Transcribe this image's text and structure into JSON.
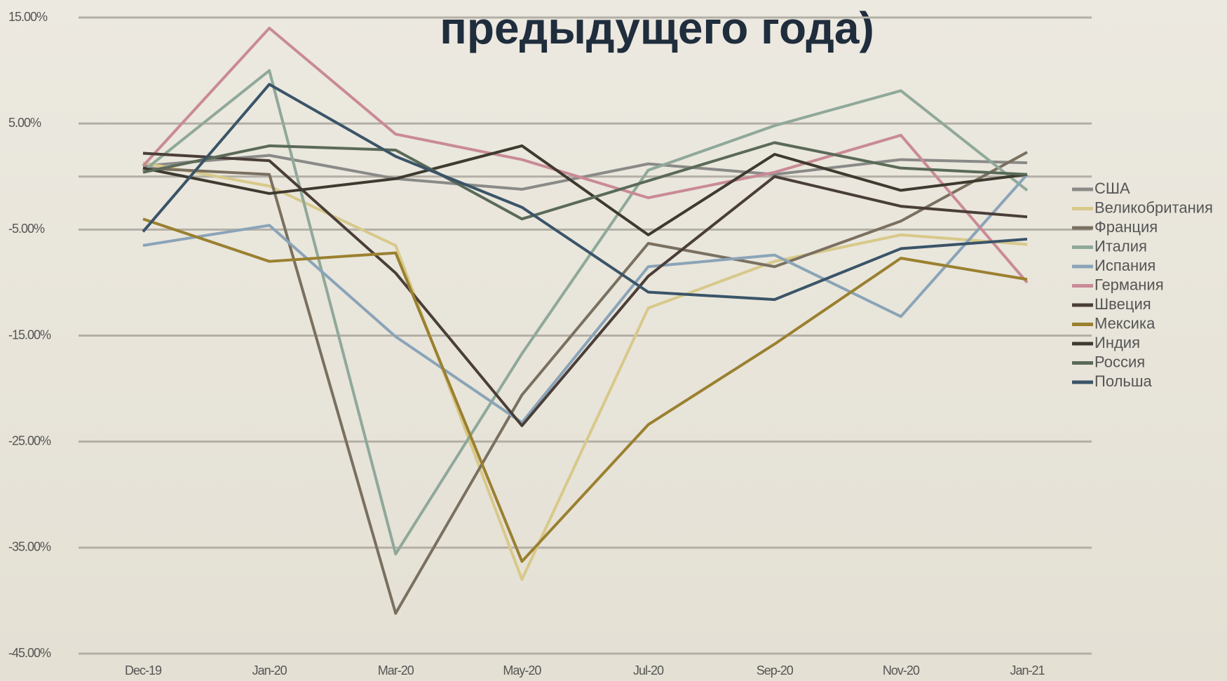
{
  "chart_data": {
    "type": "line",
    "title": "предыдущего года)",
    "categories": [
      "Dec-19",
      "Jan-20",
      "Mar-20",
      "May-20",
      "Jul-20",
      "Sep-20",
      "Nov-20",
      "Jan-21"
    ],
    "ylim": [
      -45,
      15
    ],
    "yticks": [
      {
        "value": 15,
        "label": "15.00%"
      },
      {
        "value": 5,
        "label": "5.00%"
      },
      {
        "value": -5,
        "label": "-5.00%"
      },
      {
        "value": -15,
        "label": "-15.00%"
      },
      {
        "value": -25,
        "label": "-25.00%"
      },
      {
        "value": -35,
        "label": "-35.00%"
      },
      {
        "value": -45,
        "label": "-45.00%"
      }
    ],
    "grid": true,
    "legend": "right",
    "series": [
      {
        "name": "США",
        "color": "#8a8a88",
        "values": [
          1.0,
          2.0,
          -0.2,
          -1.2,
          1.2,
          0.2,
          1.6,
          1.3
        ]
      },
      {
        "name": "Великобритания",
        "color": "#d8c98a",
        "values": [
          1.3,
          -0.9,
          -6.5,
          -38,
          -12.4,
          -8,
          -5.5,
          -6.4
        ]
      },
      {
        "name": "Франция",
        "color": "#7a7060",
        "values": [
          0.8,
          0.2,
          -41.2,
          -20.6,
          -6.3,
          -8.5,
          -4.2,
          2.3
        ]
      },
      {
        "name": "Италия",
        "color": "#8fa89a",
        "values": [
          0.5,
          10,
          -35.6,
          -16.7,
          0.6,
          4.8,
          8.1,
          -1.3
        ]
      },
      {
        "name": "Испания",
        "color": "#8aa4b8",
        "values": [
          -6.5,
          -4.6,
          -15.1,
          -23.2,
          -8.5,
          -7.4,
          -13.2,
          0.2
        ]
      },
      {
        "name": "Германия",
        "color": "#c98a96",
        "values": [
          1.0,
          14,
          4,
          1.6,
          -2,
          0.4,
          3.9,
          -10
        ]
      },
      {
        "name": "Швеция",
        "color": "#4a3e38",
        "values": [
          2.2,
          1.5,
          -9.1,
          -23.5,
          -9.4,
          0,
          -2.8,
          -3.8
        ]
      },
      {
        "name": "Мексика",
        "color": "#9a8030",
        "values": [
          -4,
          -8,
          -7.2,
          -36.3,
          -23.4,
          -15.8,
          -7.7,
          -9.7
        ]
      },
      {
        "name": "Индия",
        "color": "#3e3a30",
        "values": [
          0.8,
          -1.6,
          -0.2,
          2.9,
          -5.5,
          2.1,
          -1.3,
          0.2
        ]
      },
      {
        "name": "Россия",
        "color": "#5a6a58",
        "values": [
          0.4,
          2.9,
          2.5,
          -4,
          -0.4,
          3.2,
          0.8,
          0.2
        ]
      },
      {
        "name": "Польша",
        "color": "#3a5468",
        "values": [
          -5.2,
          8.7,
          1.9,
          -2.9,
          -10.9,
          -11.6,
          -6.8,
          -5.9
        ]
      }
    ]
  }
}
